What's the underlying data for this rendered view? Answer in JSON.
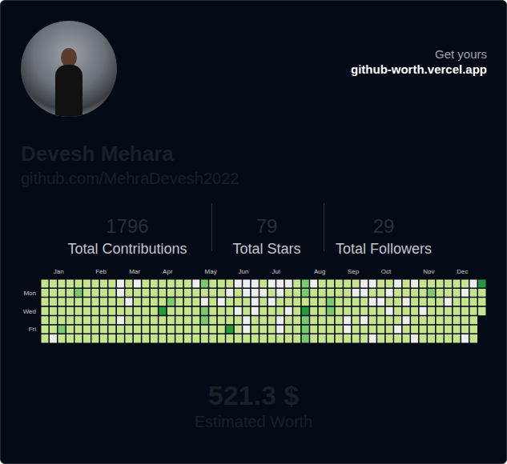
{
  "card": {
    "link_prompt": "Get yours",
    "link": "github-worth.vercel.app",
    "name": "Devesh Mehara",
    "profile": "github.com/MehraDevesh2022",
    "stats": [
      {
        "value": 1796,
        "label": "Total Contributions"
      },
      {
        "value": 79,
        "label": "Total Stars"
      },
      {
        "value": 29,
        "label": "Total Followers"
      }
    ],
    "worth": {
      "value": 521.3,
      "label": "521.3 $",
      "caption": "Estimated Worth"
    }
  },
  "chart_data": {
    "type": "heatmap",
    "x": [
      null,
      "Jan",
      null,
      null,
      null,
      null,
      "Feb",
      null,
      null,
      null,
      "Mar",
      null,
      null,
      null,
      "Apr",
      null,
      null,
      null,
      null,
      "May",
      null,
      null,
      null,
      "Jun",
      null,
      null,
      null,
      "Jul",
      null,
      null,
      null,
      null,
      "Aug",
      null,
      null,
      null,
      "Sep",
      null,
      null,
      null,
      "Oct",
      null,
      null,
      null,
      null,
      "Nov",
      null,
      null,
      null,
      "Dec",
      null,
      null,
      null
    ],
    "y": [
      null,
      "Mon",
      null,
      "Wed",
      null,
      "Fri",
      null
    ],
    "levels": [
      0,
      1,
      2,
      3
    ],
    "colors": [
      "#eeeeee",
      "#c6e48b",
      "#7bc96f",
      "#239a3b"
    ],
    "cells": [
      [
        1,
        1,
        1,
        1,
        1,
        1,
        1,
        1,
        1,
        0,
        1,
        0,
        1,
        1,
        1,
        1,
        1,
        1,
        0,
        2,
        1,
        1,
        1,
        0,
        0,
        0,
        1,
        0,
        0,
        0,
        1,
        2,
        0,
        1,
        1,
        1,
        1,
        1,
        0,
        0,
        1,
        1,
        0,
        1,
        0,
        1,
        1,
        1,
        1,
        1,
        1,
        0,
        3
      ],
      [
        1,
        1,
        1,
        1,
        2,
        1,
        1,
        1,
        1,
        0,
        1,
        1,
        1,
        1,
        1,
        1,
        1,
        1,
        1,
        1,
        1,
        1,
        0,
        1,
        0,
        0,
        0,
        1,
        0,
        1,
        1,
        2,
        1,
        1,
        1,
        1,
        1,
        0,
        0,
        1,
        1,
        0,
        1,
        1,
        1,
        1,
        2,
        1,
        1,
        1,
        0,
        1,
        1
      ],
      [
        1,
        1,
        1,
        1,
        1,
        1,
        1,
        1,
        1,
        1,
        0,
        1,
        1,
        1,
        1,
        2,
        1,
        1,
        1,
        0,
        1,
        0,
        1,
        1,
        1,
        0,
        1,
        0,
        1,
        1,
        1,
        1,
        1,
        1,
        2,
        1,
        1,
        1,
        1,
        0,
        0,
        1,
        1,
        0,
        1,
        1,
        1,
        1,
        0,
        1,
        1,
        1,
        1
      ],
      [
        1,
        1,
        1,
        1,
        1,
        1,
        1,
        1,
        1,
        1,
        1,
        1,
        1,
        1,
        3,
        1,
        1,
        1,
        1,
        2,
        1,
        1,
        1,
        0,
        1,
        0,
        1,
        1,
        1,
        0,
        1,
        3,
        1,
        1,
        2,
        1,
        1,
        1,
        1,
        1,
        1,
        0,
        1,
        1,
        1,
        0,
        1,
        1,
        1,
        1,
        1,
        1,
        1
      ],
      [
        1,
        1,
        1,
        1,
        1,
        1,
        1,
        1,
        1,
        0,
        1,
        1,
        1,
        1,
        1,
        1,
        1,
        1,
        1,
        2,
        1,
        1,
        1,
        1,
        0,
        1,
        1,
        1,
        0,
        1,
        1,
        2,
        1,
        1,
        1,
        1,
        0,
        1,
        0,
        1,
        1,
        1,
        1,
        0,
        1,
        1,
        1,
        1,
        1,
        1,
        1,
        1,
        null
      ],
      [
        1,
        1,
        2,
        1,
        1,
        1,
        1,
        1,
        1,
        1,
        1,
        1,
        1,
        1,
        1,
        1,
        1,
        1,
        1,
        1,
        1,
        1,
        3,
        1,
        0,
        1,
        1,
        1,
        0,
        1,
        1,
        2,
        1,
        1,
        1,
        1,
        0,
        1,
        1,
        1,
        1,
        1,
        0,
        1,
        1,
        1,
        1,
        1,
        1,
        1,
        1,
        1,
        null
      ],
      [
        1,
        0,
        1,
        1,
        1,
        1,
        1,
        1,
        1,
        1,
        1,
        1,
        1,
        1,
        1,
        1,
        1,
        1,
        1,
        1,
        1,
        1,
        1,
        1,
        1,
        1,
        1,
        1,
        1,
        1,
        1,
        2,
        1,
        1,
        1,
        1,
        1,
        1,
        1,
        0,
        1,
        1,
        1,
        1,
        0,
        1,
        1,
        1,
        1,
        1,
        0,
        1,
        null
      ]
    ]
  }
}
